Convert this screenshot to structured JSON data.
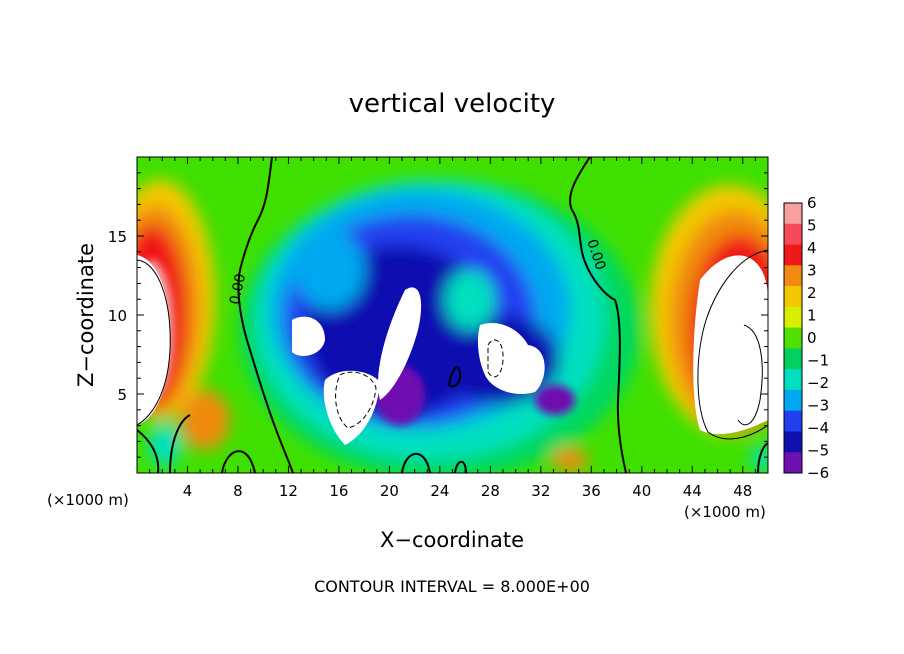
{
  "chart_data": {
    "type": "heatmap",
    "title": "vertical velocity",
    "xlabel": "X−coordinate",
    "ylabel": "Z−coordinate",
    "x_unit": "(×1000 m)",
    "x_unit_right": "(×1000 m)",
    "xlim": [
      0,
      50
    ],
    "ylim": [
      0,
      20
    ],
    "x_ticks": [
      "4",
      "8",
      "12",
      "16",
      "20",
      "24",
      "28",
      "32",
      "36",
      "40",
      "44",
      "48"
    ],
    "y_ticks": [
      "5",
      "10",
      "15"
    ],
    "colorbar": {
      "levels": [
        "6",
        "5",
        "4",
        "3",
        "2",
        "1",
        "0",
        "−1",
        "−2",
        "−3",
        "−4",
        "−5",
        "−6"
      ],
      "colors": [
        "#f7a0a0",
        "#f74a58",
        "#f01818",
        "#f08a10",
        "#f4c800",
        "#d8ee00",
        "#50e000",
        "#00d060",
        "#00e0c0",
        "#00a8f0",
        "#2040f0",
        "#1010b0",
        "#7010b0"
      ],
      "range": [
        -6,
        6
      ]
    },
    "contour_labels": [
      "0.00",
      "0.00"
    ],
    "contour_interval": "CONTOUR INTERVAL = 8.000E+00"
  }
}
